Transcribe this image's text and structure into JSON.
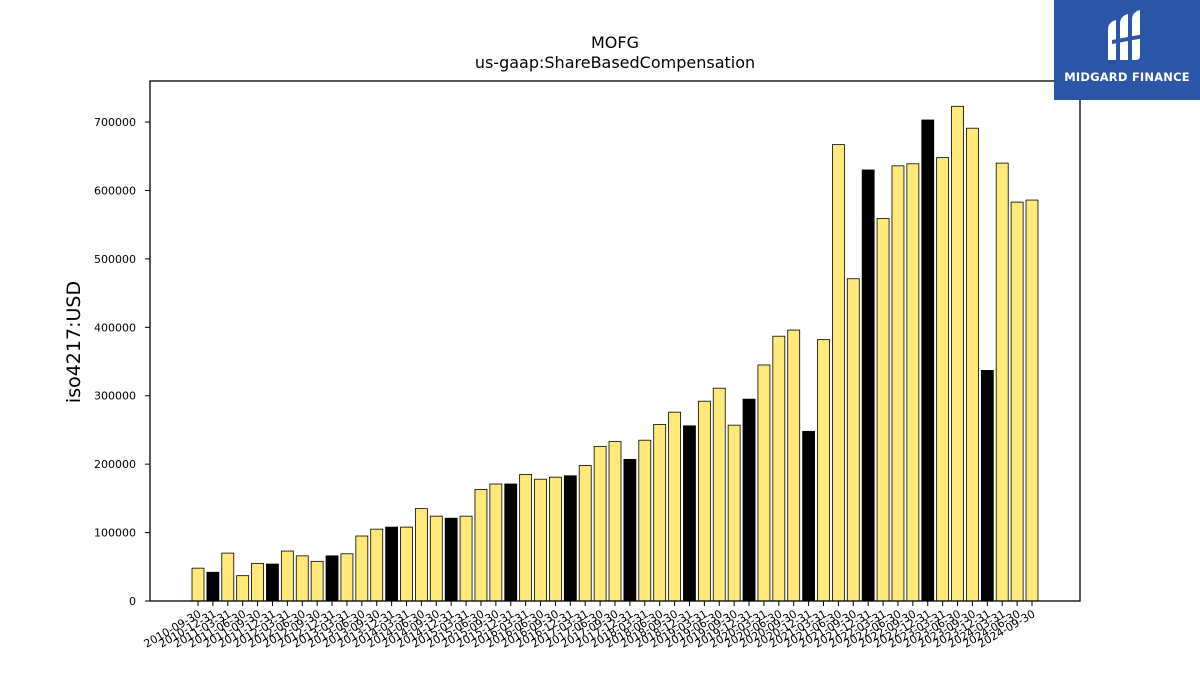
{
  "chart_data": {
    "type": "bar",
    "title": "MOFG",
    "subtitle": "us-gaap:ShareBasedCompensation",
    "xlabel": "",
    "ylabel": "iso4217:USD",
    "ylim": [
      0,
      760000
    ],
    "yticks": [
      0,
      100000,
      200000,
      300000,
      400000,
      500000,
      600000,
      700000
    ],
    "grid": false,
    "colors": {
      "quarterly": "#ffe97a",
      "annual": "#000000",
      "edge": "#000000"
    },
    "categories": [
      "2010-09-30",
      "2010-12-31",
      "2011-03-31",
      "2011-06-30",
      "2011-09-30",
      "2011-12-31",
      "2012-03-31",
      "2012-06-30",
      "2012-09-30",
      "2012-12-31",
      "2013-03-31",
      "2013-06-30",
      "2013-09-30",
      "2013-12-31",
      "2014-03-31",
      "2014-06-30",
      "2014-09-30",
      "2014-12-31",
      "2015-03-31",
      "2015-06-30",
      "2015-09-30",
      "2015-12-31",
      "2016-03-31",
      "2016-06-30",
      "2016-09-30",
      "2016-12-31",
      "2017-03-31",
      "2017-06-30",
      "2017-09-30",
      "2017-12-31",
      "2018-03-31",
      "2018-06-30",
      "2018-09-30",
      "2018-12-31",
      "2019-03-31",
      "2019-06-30",
      "2019-09-30",
      "2019-12-31",
      "2020-03-31",
      "2020-06-30",
      "2020-09-30",
      "2020-12-31",
      "2021-03-31",
      "2021-06-30",
      "2021-09-30",
      "2021-12-31",
      "2022-03-31",
      "2022-06-30",
      "2022-09-30",
      "2022-12-31",
      "2023-03-31",
      "2023-06-30",
      "2023-09-30",
      "2023-12-31",
      "2024-03-31",
      "2024-06-30",
      "2024-09-30"
    ],
    "values": [
      48000,
      42000,
      70000,
      37000,
      55000,
      54000,
      73000,
      66000,
      58000,
      66000,
      69000,
      95000,
      105000,
      108000,
      108000,
      135000,
      124000,
      121000,
      124000,
      163000,
      171000,
      171000,
      185000,
      178000,
      181000,
      183000,
      198000,
      226000,
      233000,
      207000,
      235000,
      258000,
      276000,
      256000,
      292000,
      311000,
      257000,
      295000,
      345000,
      387000,
      396000,
      248000,
      382000,
      667000,
      471000,
      630000,
      559000,
      636000,
      639000,
      703000,
      648000,
      723000,
      691000,
      337000,
      640000,
      583000,
      586000
    ],
    "annual": [
      false,
      true,
      false,
      false,
      false,
      true,
      false,
      false,
      false,
      true,
      false,
      false,
      false,
      true,
      false,
      false,
      false,
      true,
      false,
      false,
      false,
      true,
      false,
      false,
      false,
      true,
      false,
      false,
      false,
      true,
      false,
      false,
      false,
      true,
      false,
      false,
      false,
      true,
      false,
      false,
      false,
      true,
      false,
      false,
      false,
      true,
      false,
      false,
      false,
      true,
      false,
      false,
      false,
      true,
      false,
      false,
      false
    ],
    "xtick_labels": [
      "2010-09-30",
      "2010-12-31",
      "2011-03-31",
      "2011-06-30",
      "2011-09-30",
      "2011-12-31",
      "2012-03-31",
      "2012-06-30",
      "2012-09-30",
      "2012-12-31",
      "2013-03-31",
      "2013-06-30",
      "2013-09-30",
      "2013-12-31",
      "2014-03-31",
      "2014-06-30",
      "2014-09-30",
      "2014-12-31",
      "2015-03-31",
      "2015-06-30",
      "2015-09-30",
      "2015-12-31",
      "2016-03-31",
      "2016-06-30",
      "2016-09-30",
      "2016-12-31",
      "2017-03-31",
      "2017-06-30",
      "2017-09-30",
      "2017-12-31",
      "2018-03-31",
      "2018-06-30",
      "2018-09-30",
      "2018-12-31",
      "2019-03-31",
      "2019-06-30",
      "2019-09-30",
      "2019-12-31",
      "2020-03-31",
      "2020-06-30",
      "2020-09-30",
      "2020-12-31",
      "2021-03-31",
      "2021-06-30",
      "2021-09-30",
      "2021-12-31",
      "2022-03-31",
      "2022-06-30",
      "2022-09-30",
      "2022-12-31",
      "2023-03-31",
      "2023-06-30",
      "2023-09-30",
      "2023-12-31",
      "2024-03-31",
      "2024-06-30",
      "2024-09-30"
    ]
  },
  "logo": {
    "text": "MIDGARD FINANCE",
    "icon": "midgard-logo-icon"
  }
}
